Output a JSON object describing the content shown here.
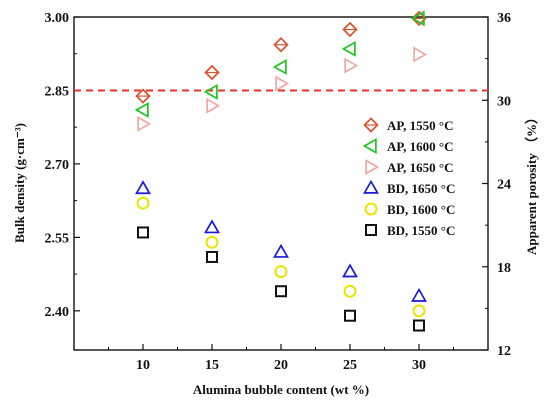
{
  "chart_data": {
    "type": "scatter",
    "xlabel": "Alumina bubble content (wt %)",
    "ylabel_left": "Bulk density (g·cm⁻³)",
    "ylabel_right": "Apparent porosity （%）",
    "x_ticks": [
      "10",
      "15",
      "20",
      "25",
      "30"
    ],
    "y_left_ticks": [
      "2.40",
      "2.55",
      "2.70",
      "2.85",
      "3.00"
    ],
    "y_right_ticks": [
      "12",
      "18",
      "24",
      "30",
      "36"
    ],
    "x": [
      10,
      15,
      20,
      25,
      30
    ],
    "xlim": [
      5,
      35
    ],
    "ylim_left": [
      2.32,
      3.0
    ],
    "ylim_right": [
      12,
      36
    ],
    "reference_line": {
      "axis": "left",
      "value": 2.85,
      "label": "2.85",
      "color": "#e8322a",
      "style": "dashed"
    },
    "legend_position": "right",
    "series": [
      {
        "name": "AP,  1550 °C",
        "axis": "right",
        "marker": "diamond",
        "color": "#d9532f",
        "values": [
          30.3,
          32.0,
          34.0,
          35.1,
          35.9
        ]
      },
      {
        "name": "AP,  1600 °C",
        "axis": "right",
        "marker": "triangle-left",
        "color": "#22c422",
        "values": [
          29.3,
          30.6,
          32.4,
          33.7,
          35.9
        ]
      },
      {
        "name": "AP,  1650 °C",
        "axis": "right",
        "marker": "triangle-right",
        "color": "#f2a7a7",
        "values": [
          28.3,
          29.6,
          31.2,
          32.5,
          33.3
        ]
      },
      {
        "name": "BD, 1650 °C",
        "axis": "left",
        "marker": "triangle-up",
        "color": "#1a1ad9",
        "values": [
          2.65,
          2.57,
          2.52,
          2.48,
          2.43
        ]
      },
      {
        "name": "BD, 1600 °C",
        "axis": "left",
        "marker": "circle",
        "color": "#e6e600",
        "values": [
          2.62,
          2.54,
          2.48,
          2.44,
          2.4
        ]
      },
      {
        "name": "BD, 1550 °C",
        "axis": "left",
        "marker": "square",
        "color": "#111111",
        "values": [
          2.56,
          2.51,
          2.44,
          2.39,
          2.37
        ]
      }
    ]
  }
}
